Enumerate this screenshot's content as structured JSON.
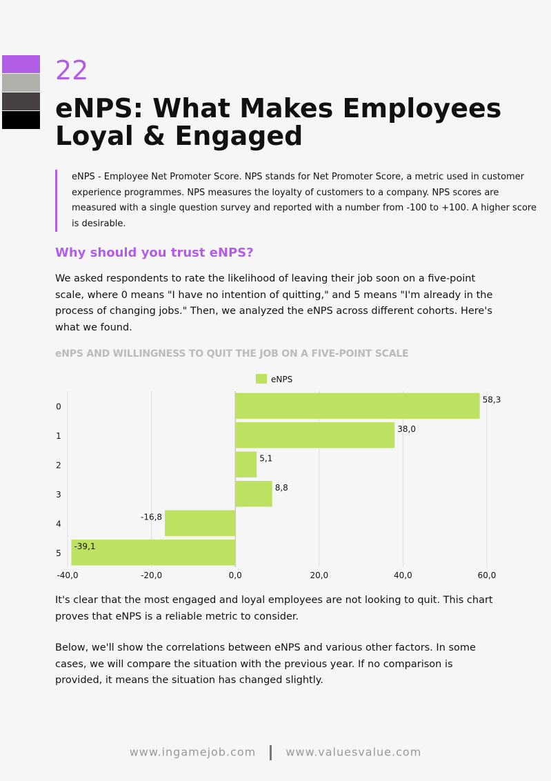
{
  "page": {
    "number": "22",
    "title": "eNPS: What Makes Employees Loyal & Engaged",
    "palette": [
      "#b25de6",
      "#b0b0aa",
      "#474145",
      "#000000"
    ]
  },
  "intro": "eNPS - Employee Net Promoter Score. NPS stands for Net Promoter Score, a metric used in customer experience programmes. NPS measures the loyalty of customers to a company. NPS scores are measured with a single question survey and reported with a number from -100 to +100. A higher score is desirable.",
  "section": {
    "heading": "Why should you trust eNPS?",
    "paragraph1": "We asked respondents to rate the likelihood of leaving their job soon on a five-point scale, where 0 means \"I have no intention of quitting,\" and 5 means \"I'm already in the process of changing jobs.\" Then, we analyzed the eNPS across different cohorts. Here's what we found.",
    "paragraph2": "It's clear that the most engaged and loyal employees are not looking to quit. This chart proves that eNPS is a reliable metric to consider.",
    "paragraph3": "Below, we'll show the correlations between eNPS and various other factors. In some cases, we will compare the situation with the previous year. If no comparison is provided, it means the situation has changed slightly."
  },
  "chart_data": {
    "type": "bar",
    "orientation": "horizontal",
    "title": "eNPS AND WILLINGNESS TO QUIT THE JOB ON A FIVE-POINT SCALE",
    "categories": [
      "0",
      "1",
      "2",
      "3",
      "4",
      "5"
    ],
    "series": [
      {
        "name": "eNPS",
        "color": "#bde262",
        "values": [
          58.3,
          38.0,
          5.1,
          8.8,
          -16.8,
          -39.1
        ],
        "labels": [
          "58,3",
          "38,0",
          "5,1",
          "8,8",
          "-16,8",
          "-39,1"
        ]
      }
    ],
    "xlim": [
      -40,
      60
    ],
    "xticks": [
      -40,
      -20,
      0,
      20,
      40,
      60
    ],
    "xtick_labels": [
      "-40,0",
      "-20,0",
      "0,0",
      "20,0",
      "40,0",
      "60,0"
    ],
    "grid": true,
    "legend": "top-center"
  },
  "footer": {
    "link1": "www.ingamejob.com",
    "link2": "www.valuesvalue.com"
  }
}
